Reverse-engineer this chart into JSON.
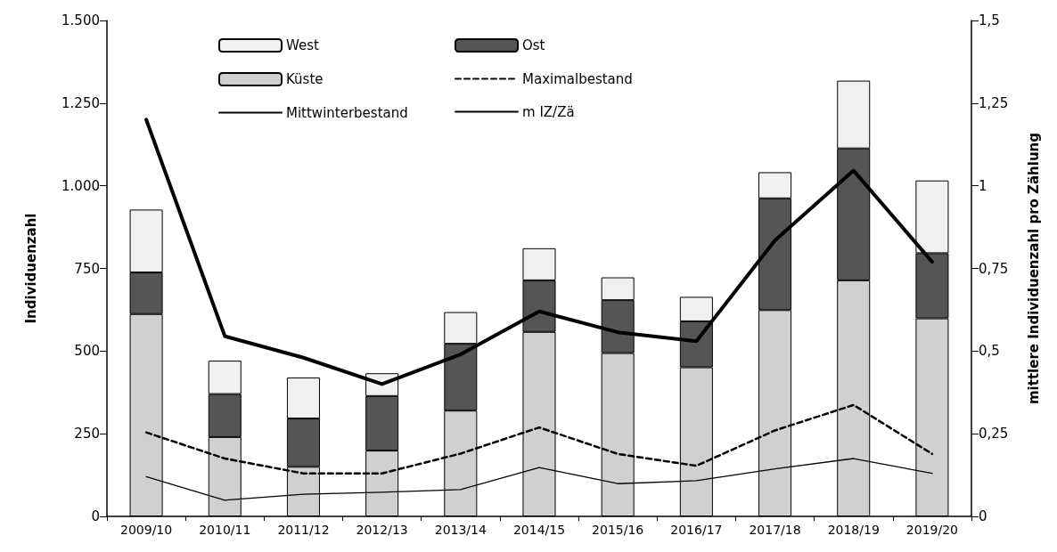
{
  "chart_data": {
    "type": "bar",
    "stacked": true,
    "ylabel": "Individuenzahl",
    "y2label": "mittlere Individuenzahl pro Zählung",
    "categories": [
      "2009/10",
      "2010/11",
      "2011/12",
      "2012/13",
      "2013/14",
      "2014/15",
      "2015/16",
      "2016/17",
      "2017/18",
      "2018/19",
      "2019/20"
    ],
    "series": [
      {
        "name": "Küste",
        "color": "#d0d0d0",
        "values": [
          612,
          240,
          150,
          199,
          320,
          558,
          494,
          451,
          624,
          714,
          599
        ]
      },
      {
        "name": "Ost",
        "color": "#555555",
        "values": [
          126,
          130,
          146,
          165,
          202,
          156,
          160,
          139,
          338,
          399,
          197
        ]
      },
      {
        "name": "West",
        "color": "#f0f0f0",
        "values": [
          190,
          101,
          124,
          69,
          96,
          97,
          69,
          74,
          79,
          205,
          220
        ]
      },
      {
        "name": "Maximalbestand",
        "type": "line",
        "color": "#000000",
        "line_style": "dashed",
        "values": [
          254,
          175,
          130,
          130,
          190,
          269,
          189,
          153,
          260,
          337,
          189
        ]
      },
      {
        "name": "Mittwinterbestand",
        "type": "line",
        "color": "#000000",
        "line_style": "solid",
        "values": [
          120,
          49,
          67,
          73,
          81,
          148,
          99,
          108,
          144,
          175,
          130
        ]
      },
      {
        "name": "m IZ/Zä",
        "type": "line",
        "axis": "y2",
        "color": "#000000",
        "line_style": "solid",
        "values": [
          1.2,
          0.545,
          0.48,
          0.4,
          0.49,
          0.62,
          0.557,
          0.53,
          0.835,
          1.046,
          0.77
        ]
      }
    ],
    "ylim": [
      0,
      1500
    ],
    "yticks": [
      0,
      250,
      500,
      750,
      {
        "value": 1000,
        "label": "1.000"
      },
      {
        "value": 1250,
        "label": "1.250"
      },
      {
        "value": 1500,
        "label": "1.500"
      }
    ],
    "y2lim": [
      0,
      1.5
    ],
    "y2ticks": [
      0,
      {
        "value": 0.25,
        "label": "0,25"
      },
      {
        "value": 0.5,
        "label": "0,5"
      },
      {
        "value": 0.75,
        "label": "0,75"
      },
      1,
      {
        "value": 1.25,
        "label": "1,25"
      },
      {
        "value": 1.5,
        "label": "1,5"
      }
    ],
    "grid": false,
    "legend": "top",
    "marker": "none"
  }
}
